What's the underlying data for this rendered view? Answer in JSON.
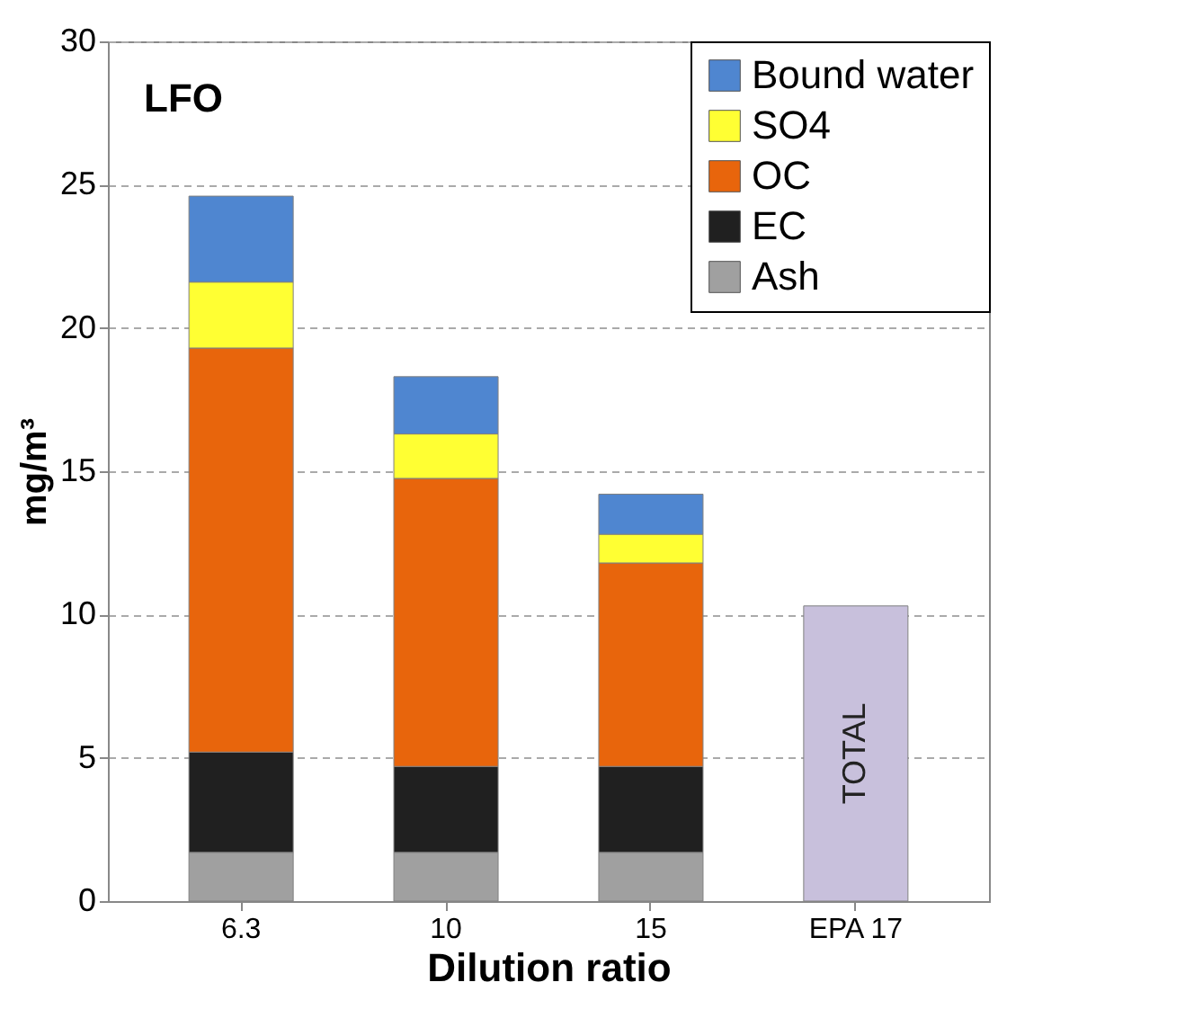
{
  "chart_data": {
    "type": "bar",
    "stacked": true,
    "xlabel": "Dilution ratio",
    "ylabel": "mg/m³",
    "annotations": [
      "LFO"
    ],
    "categories": [
      "6.3",
      "10",
      "15",
      "EPA 17"
    ],
    "series": [
      {
        "name": "Ash",
        "color": "#a0a0a0",
        "values": [
          1.7,
          1.7,
          1.7,
          null
        ]
      },
      {
        "name": "EC",
        "color": "#202020",
        "values": [
          3.5,
          3.0,
          3.0,
          null
        ]
      },
      {
        "name": "OC",
        "color": "#e8650c",
        "values": [
          14.1,
          10.05,
          7.1,
          null
        ]
      },
      {
        "name": "SO4",
        "color": "#ffff33",
        "values": [
          2.3,
          1.55,
          1.0,
          null
        ]
      },
      {
        "name": "Bound water",
        "color": "#4f86d0",
        "values": [
          3.0,
          2.0,
          1.4,
          null
        ]
      },
      {
        "name": "TOTAL",
        "color": "#c8c0dc",
        "values": [
          null,
          null,
          null,
          10.3
        ]
      }
    ],
    "ylim": [
      0,
      30
    ],
    "yticks": [
      0,
      5,
      10,
      15,
      20,
      25,
      30
    ],
    "grid": "y",
    "legend": "top right"
  }
}
